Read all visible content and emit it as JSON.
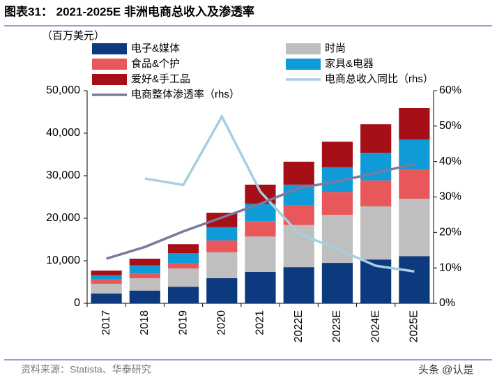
{
  "chart_data": {
    "type": "bar",
    "title": "图表31：  2021-2025E 非洲电商总收入及渗透率",
    "y_label": "（百万美元）",
    "source": "资料来源：Statista、华泰研究",
    "watermark": "头条 @认是",
    "stacked": true,
    "categories": [
      "2017",
      "2018",
      "2019",
      "2020",
      "2021",
      "2022E",
      "2023E",
      "2024E",
      "2025E"
    ],
    "series": [
      {
        "name": "电子&媒体",
        "color": "#0d3a7e",
        "values": [
          2300,
          3000,
          3900,
          5900,
          7400,
          8500,
          9500,
          10300,
          11100
        ]
      },
      {
        "name": "时尚",
        "color": "#bfbfbf",
        "values": [
          2300,
          2900,
          4300,
          6100,
          8300,
          9900,
          11300,
          12500,
          13500
        ]
      },
      {
        "name": "食品&个护",
        "color": "#e8575a",
        "values": [
          1000,
          1100,
          1300,
          2800,
          3600,
          4600,
          5400,
          6100,
          6900
        ]
      },
      {
        "name": "家具&电器",
        "color": "#0f9ad8",
        "values": [
          1000,
          1900,
          2300,
          3100,
          4100,
          4900,
          5800,
          6500,
          7000
        ]
      },
      {
        "name": "爱好&手工品",
        "color": "#a50f15",
        "values": [
          1100,
          1600,
          2100,
          3400,
          4500,
          5400,
          6000,
          6700,
          7400
        ]
      },
      {
        "name": "电商总收入同比（rhs）",
        "color": "#a7cfe0",
        "type": "line",
        "axis": "y2",
        "values": [
          null,
          35.2,
          33.4,
          52.7,
          31.5,
          19.7,
          15.3,
          10.6,
          9.0
        ]
      },
      {
        "name": "电商整体渗透率（rhs）",
        "color": "#7a7b9e",
        "type": "line",
        "axis": "y2",
        "values": [
          12.6,
          15.9,
          20.3,
          24.2,
          28.1,
          32.5,
          34.4,
          36.8,
          39.3
        ]
      }
    ],
    "ylim": [
      0,
      50000
    ],
    "yticks": [
      0,
      {
        "value": 10000,
        "label": "10,000"
      },
      {
        "value": 20000,
        "label": "20,000"
      },
      {
        "value": 30000,
        "label": "30,000"
      },
      {
        "value": 40000,
        "label": "40,000"
      },
      {
        "value": 50000,
        "label": "50,000"
      }
    ],
    "y2lim": [
      0,
      60
    ],
    "y2ticks": [
      {
        "value": 0,
        "label": "0%"
      },
      {
        "value": 10,
        "label": "10%"
      },
      {
        "value": 20,
        "label": "20%"
      },
      {
        "value": 30,
        "label": "30%"
      },
      {
        "value": 40,
        "label": "40%"
      },
      {
        "value": 50,
        "label": "50%"
      },
      {
        "value": 60,
        "label": "60%"
      }
    ]
  }
}
